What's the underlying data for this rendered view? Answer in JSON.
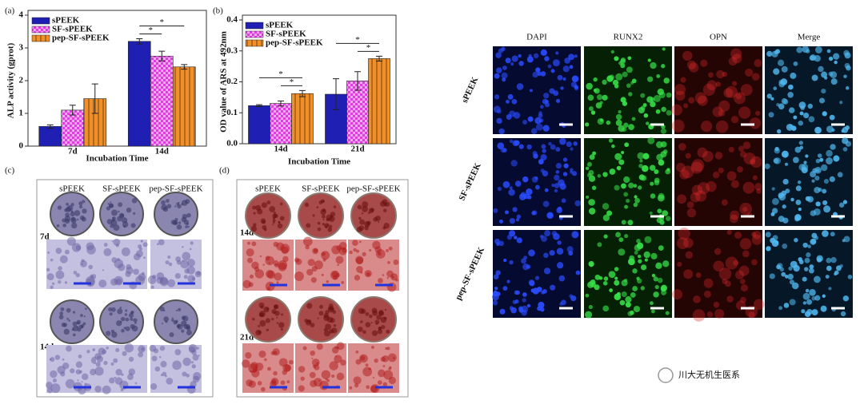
{
  "chart_data": [
    {
      "type": "bar",
      "label": "(a)",
      "x_label": "Incubation Time",
      "y_label": "ALP activity (gprot)",
      "categories": [
        "7d",
        "14d"
      ],
      "series": [
        {
          "name": "sPEEK",
          "color": "#1f1fb4",
          "hatch": "solid",
          "values": [
            0.6,
            3.2
          ],
          "errors": [
            0.05,
            0.08
          ]
        },
        {
          "name": "SF-sPEEK",
          "color": "#e03ce0",
          "hatch": "checker",
          "values": [
            1.1,
            2.75
          ],
          "errors": [
            0.15,
            0.15
          ]
        },
        {
          "name": "pep-SF-sPEEK",
          "color": "#f0902a",
          "hatch": "vertical",
          "values": [
            1.45,
            2.42
          ],
          "errors": [
            0.45,
            0.07
          ]
        }
      ],
      "ylim": [
        0,
        4
      ],
      "yticks": [
        0,
        1,
        2,
        3,
        4
      ],
      "legend": "top-left",
      "annotations": [
        "*",
        "*"
      ]
    },
    {
      "type": "bar",
      "label": "(b)",
      "x_label": "Incubation Time",
      "y_label": "OD value of ARS at 492nm",
      "categories": [
        "14d",
        "21d"
      ],
      "series": [
        {
          "name": "sPEEK",
          "color": "#1f1fb4",
          "hatch": "solid",
          "values": [
            0.123,
            0.16
          ],
          "errors": [
            0.003,
            0.05
          ]
        },
        {
          "name": "SF-sPEEK",
          "color": "#e03ce0",
          "hatch": "checker",
          "values": [
            0.13,
            0.203
          ],
          "errors": [
            0.008,
            0.03
          ]
        },
        {
          "name": "pep-SF-sPEEK",
          "color": "#f0902a",
          "hatch": "vertical",
          "values": [
            0.162,
            0.275
          ],
          "errors": [
            0.01,
            0.008
          ]
        }
      ],
      "ylim": [
        0,
        0.4
      ],
      "yticks": [
        {
          "value": 0,
          "label": "0.0"
        },
        0.1,
        0.2,
        0.3,
        0.4
      ],
      "legend": "top-left",
      "annotations": [
        "*",
        "*",
        "*",
        "*"
      ]
    }
  ],
  "panel_c": {
    "label": "(c)",
    "columns": [
      "sPEEK",
      "SF-sPEEK",
      "pep-SF-sPEEK"
    ],
    "rows": [
      "7d",
      "14d"
    ]
  },
  "panel_d": {
    "label": "(d)",
    "columns": [
      "sPEEK",
      "SF-sPEEK",
      "pep-SF-sPEEK"
    ],
    "rows": [
      "14d",
      "21d"
    ]
  },
  "fluorescence": {
    "columns": [
      "DAPI",
      "RUNX2",
      "OPN",
      "Merge"
    ],
    "rows": [
      "sPEEK",
      "SF-sPEEK",
      "pep-SF-sPEEK"
    ]
  },
  "watermark": "川大无机生医系"
}
